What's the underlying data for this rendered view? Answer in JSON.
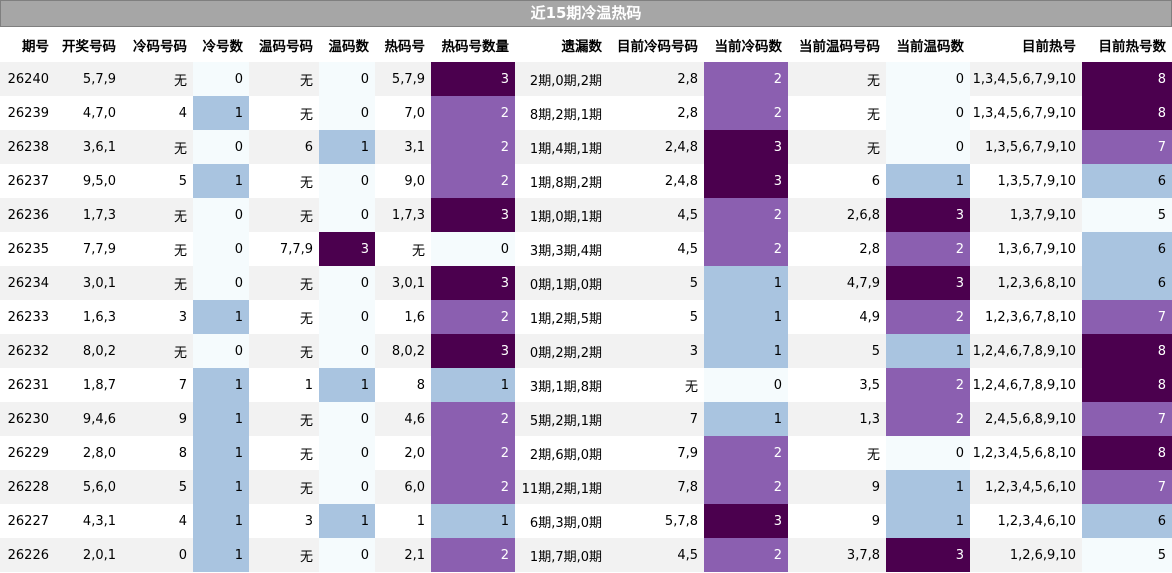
{
  "chart_data": {
    "type": "table",
    "title": "近15期冷温热码",
    "columns": [
      "期号",
      "开奖号码",
      "冷码号码",
      "冷号数",
      "温码号码",
      "温码数",
      "热码号",
      "热码号数量",
      "遗漏数",
      "目前冷码号码",
      "当前冷码数",
      "当前温码号码",
      "当前温码数",
      "目前热号",
      "目前热号数"
    ],
    "heat_columns": [
      3,
      5,
      7,
      10,
      12,
      14
    ],
    "colors": {
      "level0": "#f5fbfd",
      "level1": "#a9c4e0",
      "level2": "#8b5fb0",
      "level3": "#4b004e",
      "title_bg": "#a6a6a6"
    },
    "rows": [
      [
        "26240",
        "5,7,9",
        "无",
        "0",
        "无",
        "0",
        "5,7,9",
        "3",
        "2期,0期,2期",
        "2,8",
        "2",
        "无",
        "0",
        "1,3,4,5,6,7,9,10",
        "8"
      ],
      [
        "26239",
        "4,7,0",
        "4",
        "1",
        "无",
        "0",
        "7,0",
        "2",
        "8期,2期,1期",
        "2,8",
        "2",
        "无",
        "0",
        "1,3,4,5,6,7,9,10",
        "8"
      ],
      [
        "26238",
        "3,6,1",
        "无",
        "0",
        "6",
        "1",
        "3,1",
        "2",
        "1期,4期,1期",
        "2,4,8",
        "3",
        "无",
        "0",
        "1,3,5,6,7,9,10",
        "7"
      ],
      [
        "26237",
        "9,5,0",
        "5",
        "1",
        "无",
        "0",
        "9,0",
        "2",
        "1期,8期,2期",
        "2,4,8",
        "3",
        "6",
        "1",
        "1,3,5,7,9,10",
        "6"
      ],
      [
        "26236",
        "1,7,3",
        "无",
        "0",
        "无",
        "0",
        "1,7,3",
        "3",
        "1期,0期,1期",
        "4,5",
        "2",
        "2,6,8",
        "3",
        "1,3,7,9,10",
        "5"
      ],
      [
        "26235",
        "7,7,9",
        "无",
        "0",
        "7,7,9",
        "3",
        "无",
        "0",
        "3期,3期,4期",
        "4,5",
        "2",
        "2,8",
        "2",
        "1,3,6,7,9,10",
        "6"
      ],
      [
        "26234",
        "3,0,1",
        "无",
        "0",
        "无",
        "0",
        "3,0,1",
        "3",
        "0期,1期,0期",
        "5",
        "1",
        "4,7,9",
        "3",
        "1,2,3,6,8,10",
        "6"
      ],
      [
        "26233",
        "1,6,3",
        "3",
        "1",
        "无",
        "0",
        "1,6",
        "2",
        "1期,2期,5期",
        "5",
        "1",
        "4,9",
        "2",
        "1,2,3,6,7,8,10",
        "7"
      ],
      [
        "26232",
        "8,0,2",
        "无",
        "0",
        "无",
        "0",
        "8,0,2",
        "3",
        "0期,2期,2期",
        "3",
        "1",
        "5",
        "1",
        "1,2,4,6,7,8,9,10",
        "8"
      ],
      [
        "26231",
        "1,8,7",
        "7",
        "1",
        "1",
        "1",
        "8",
        "1",
        "3期,1期,8期",
        "无",
        "0",
        "3,5",
        "2",
        "1,2,4,6,7,8,9,10",
        "8"
      ],
      [
        "26230",
        "9,4,6",
        "9",
        "1",
        "无",
        "0",
        "4,6",
        "2",
        "5期,2期,1期",
        "7",
        "1",
        "1,3",
        "2",
        "2,4,5,6,8,9,10",
        "7"
      ],
      [
        "26229",
        "2,8,0",
        "8",
        "1",
        "无",
        "0",
        "2,0",
        "2",
        "2期,6期,0期",
        "7,9",
        "2",
        "无",
        "0",
        "1,2,3,4,5,6,8,10",
        "8"
      ],
      [
        "26228",
        "5,6,0",
        "5",
        "1",
        "无",
        "0",
        "6,0",
        "2",
        "11期,2期,1期",
        "7,8",
        "2",
        "9",
        "1",
        "1,2,3,4,5,6,10",
        "7"
      ],
      [
        "26227",
        "4,3,1",
        "4",
        "1",
        "3",
        "1",
        "1",
        "1",
        "6期,3期,0期",
        "5,7,8",
        "3",
        "9",
        "1",
        "1,2,3,4,6,10",
        "6"
      ],
      [
        "26226",
        "2,0,1",
        "0",
        "1",
        "无",
        "0",
        "2,1",
        "2",
        "1期,7期,0期",
        "4,5",
        "2",
        "3,7,8",
        "3",
        "1,2,6,9,10",
        "5"
      ]
    ]
  }
}
